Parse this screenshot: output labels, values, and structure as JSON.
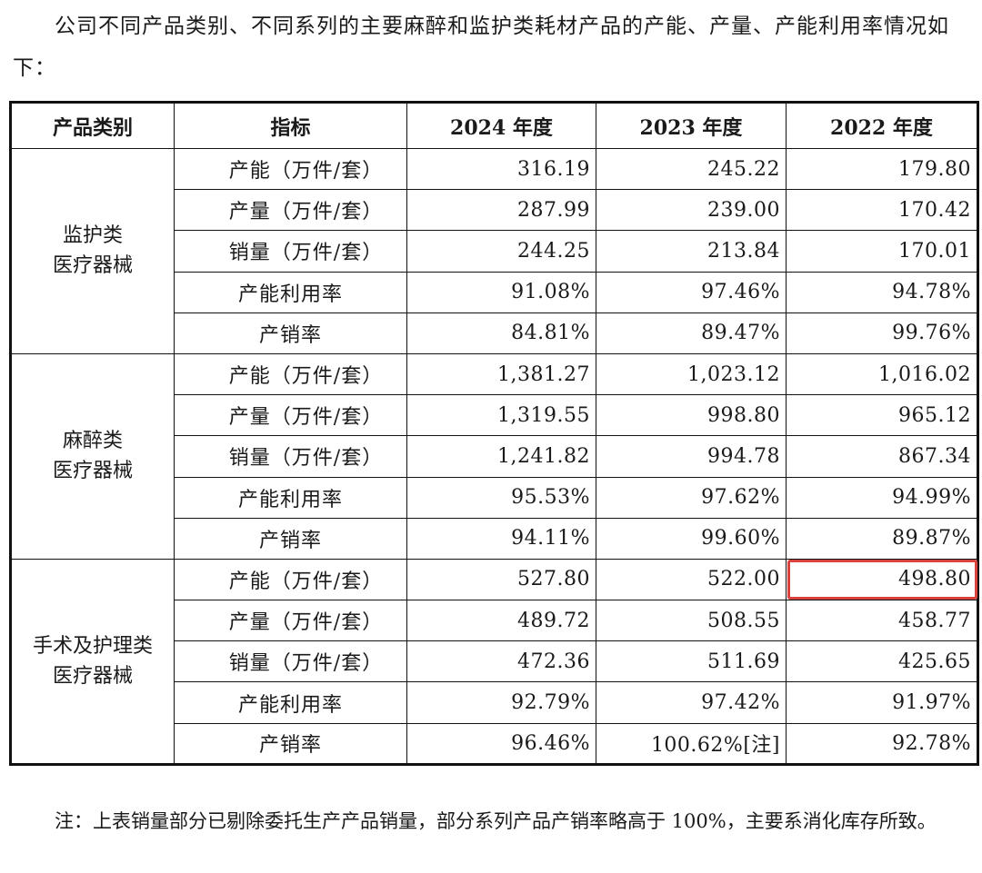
{
  "intro": "公司不同产品类别、不同系列的主要麻醉和监护类耗材产品的产能、产量、产能利用率情况如下：",
  "headers": [
    "产品类别",
    "指标",
    "2024 年度",
    "2023 年度",
    "2022 年度"
  ],
  "groups": [
    {
      "category_line1": "监护类",
      "category_line2": "医疗器械",
      "rows": [
        [
          "产能（万件/套）",
          "316.19",
          "245.22",
          "179.80"
        ],
        [
          "产量（万件/套）",
          "287.99",
          "239.00",
          "170.42"
        ],
        [
          "销量（万件/套）",
          "244.25",
          "213.84",
          "170.01"
        ],
        [
          "产能利用率",
          "91.08%",
          "97.46%",
          "94.78%"
        ],
        [
          "产销率",
          "84.81%",
          "89.47%",
          "99.76%"
        ]
      ]
    },
    {
      "category_line1": "麻醉类",
      "category_line2": "医疗器械",
      "rows": [
        [
          "产能（万件/套）",
          "1,381.27",
          "1,023.12",
          "1,016.02"
        ],
        [
          "产量（万件/套）",
          "1,319.55",
          "998.80",
          "965.12"
        ],
        [
          "销量（万件/套）",
          "1,241.82",
          "994.78",
          "867.34"
        ],
        [
          "产能利用率",
          "95.53%",
          "97.62%",
          "94.99%"
        ],
        [
          "产销率",
          "94.11%",
          "99.60%",
          "89.87%"
        ]
      ]
    },
    {
      "category_line1": "手术及护理类",
      "category_line2": "医疗器械",
      "rows": [
        [
          "产能（万件/套）",
          "527.80",
          "522.00",
          "498.80"
        ],
        [
          "产量（万件/套）",
          "489.72",
          "508.55",
          "458.77"
        ],
        [
          "销量（万件/套）",
          "472.36",
          "511.69",
          "425.65"
        ],
        [
          "产能利用率",
          "92.79%",
          "97.42%",
          "91.97%"
        ],
        [
          "产销率",
          "96.46%",
          "100.62%[注]",
          "92.78%"
        ]
      ]
    }
  ],
  "note": "注：上表销量部分已剔除委托生产产品销量，部分系列产品产销率略高于 100%，主要系消化库存所致。",
  "highlight_color": "#d9433d"
}
